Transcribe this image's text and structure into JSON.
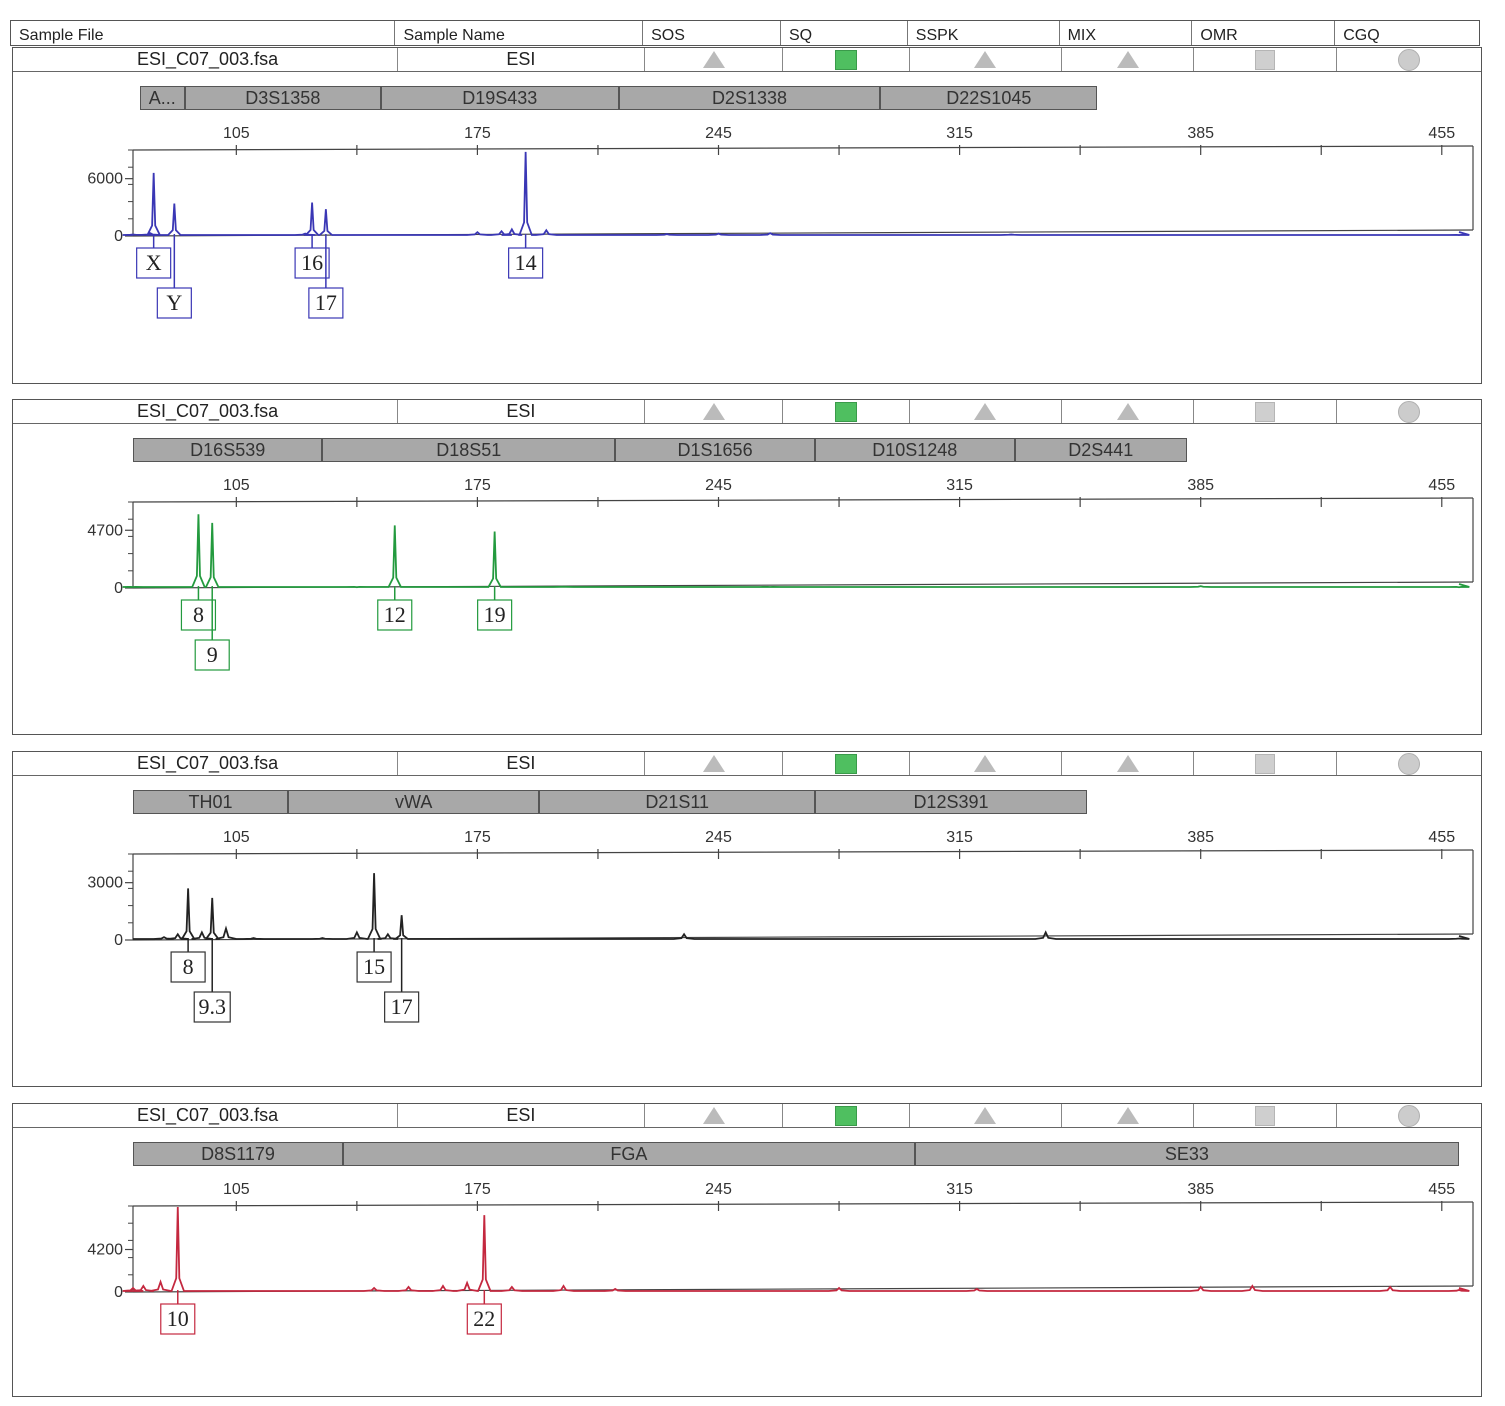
{
  "header": {
    "columns": [
      {
        "label": "Sample File",
        "width": 385
      },
      {
        "label": "Sample Name",
        "width": 248
      },
      {
        "label": "SOS",
        "width": 138
      },
      {
        "label": "SQ",
        "width": 127
      },
      {
        "label": "SSPK",
        "width": 152
      },
      {
        "label": "MIX",
        "width": 133
      },
      {
        "label": "OMR",
        "width": 143
      },
      {
        "label": "CGQ",
        "width": 144
      }
    ]
  },
  "chart_data": [
    {
      "type": "line",
      "sample_file": "ESI_C07_003.fsa",
      "sample_name": "ESI",
      "dye_color": "#3a37b5",
      "xlim": [
        75,
        460
      ],
      "x_ticks": [
        105,
        175,
        245,
        315,
        385,
        455
      ],
      "y_ticks": [
        0,
        6000
      ],
      "ymax": 9000,
      "loci": [
        {
          "name": "A...",
          "start": 77,
          "end": 90
        },
        {
          "name": "D3S1358",
          "start": 90,
          "end": 147
        },
        {
          "name": "D19S433",
          "start": 147,
          "end": 216
        },
        {
          "name": "D2S1338",
          "start": 216,
          "end": 292
        },
        {
          "name": "D22S1045",
          "start": 292,
          "end": 355
        }
      ],
      "peaks": [
        {
          "x": 81,
          "height": 6600,
          "call": "X",
          "row": 0
        },
        {
          "x": 87,
          "height": 3400,
          "call": "Y",
          "row": 1
        },
        {
          "x": 127,
          "height": 3500,
          "call": "16",
          "row": 0
        },
        {
          "x": 131,
          "height": 2800,
          "call": "17",
          "row": 1
        },
        {
          "x": 189,
          "height": 8800,
          "call": "14",
          "row": 0
        }
      ],
      "noise": [
        [
          75,
          150
        ],
        [
          80,
          300
        ],
        [
          125,
          250
        ],
        [
          175,
          400
        ],
        [
          182,
          500
        ],
        [
          185,
          700
        ],
        [
          195,
          600
        ],
        [
          230,
          200
        ],
        [
          245,
          250
        ],
        [
          260,
          300
        ],
        [
          330,
          150
        ],
        [
          460,
          100
        ]
      ]
    },
    {
      "type": "line",
      "sample_file": "ESI_C07_003.fsa",
      "sample_name": "ESI",
      "dye_color": "#239a3e",
      "xlim": [
        75,
        460
      ],
      "x_ticks": [
        105,
        175,
        245,
        315,
        385,
        455
      ],
      "y_ticks": [
        0,
        4700
      ],
      "ymax": 7000,
      "loci": [
        {
          "name": "D16S539",
          "start": 75,
          "end": 130
        },
        {
          "name": "D18S51",
          "start": 130,
          "end": 215
        },
        {
          "name": "D1S1656",
          "start": 215,
          "end": 273
        },
        {
          "name": "D10S1248",
          "start": 273,
          "end": 331
        },
        {
          "name": "D2S441",
          "start": 331,
          "end": 381
        }
      ],
      "peaks": [
        {
          "x": 94,
          "height": 6000,
          "call": "8",
          "row": 0
        },
        {
          "x": 98,
          "height": 5300,
          "call": "9",
          "row": 1
        },
        {
          "x": 151,
          "height": 5100,
          "call": "12",
          "row": 0
        },
        {
          "x": 180,
          "height": 4600,
          "call": "19",
          "row": 0
        }
      ],
      "noise": [
        [
          75,
          80
        ],
        [
          140,
          60
        ],
        [
          200,
          100
        ],
        [
          260,
          80
        ],
        [
          385,
          150
        ],
        [
          460,
          60
        ]
      ]
    },
    {
      "type": "line",
      "sample_file": "ESI_C07_003.fsa",
      "sample_name": "ESI",
      "dye_color": "#222222",
      "xlim": [
        75,
        460
      ],
      "x_ticks": [
        105,
        175,
        245,
        315,
        385,
        455
      ],
      "y_ticks": [
        0,
        3000
      ],
      "ymax": 4500,
      "loci": [
        {
          "name": "TH01",
          "start": 75,
          "end": 120
        },
        {
          "name": "vWA",
          "start": 120,
          "end": 193
        },
        {
          "name": "D21S11",
          "start": 193,
          "end": 273
        },
        {
          "name": "D12S391",
          "start": 273,
          "end": 352
        }
      ],
      "peaks": [
        {
          "x": 91,
          "height": 2700,
          "call": "8",
          "row": 0
        },
        {
          "x": 98,
          "height": 2200,
          "call": "9.3",
          "row": 1
        },
        {
          "x": 145,
          "height": 3500,
          "call": "15",
          "row": 0
        },
        {
          "x": 153,
          "height": 1300,
          "call": "17",
          "row": 1
        }
      ],
      "noise": [
        [
          84,
          150
        ],
        [
          88,
          300
        ],
        [
          95,
          400
        ],
        [
          102,
          600
        ],
        [
          110,
          100
        ],
        [
          130,
          100
        ],
        [
          140,
          400
        ],
        [
          149,
          300
        ],
        [
          235,
          300
        ],
        [
          340,
          400
        ],
        [
          460,
          80
        ]
      ]
    },
    {
      "type": "line",
      "sample_file": "ESI_C07_003.fsa",
      "sample_name": "ESI",
      "dye_color": "#c4283f",
      "xlim": [
        75,
        460
      ],
      "x_ticks": [
        105,
        175,
        245,
        315,
        385,
        455
      ],
      "y_ticks": [
        0,
        4200
      ],
      "ymax": 8500,
      "loci": [
        {
          "name": "D8S1179",
          "start": 75,
          "end": 136
        },
        {
          "name": "FGA",
          "start": 136,
          "end": 302
        },
        {
          "name": "SE33",
          "start": 302,
          "end": 460
        }
      ],
      "peaks": [
        {
          "x": 88,
          "height": 8400,
          "call": "10",
          "row": 0
        },
        {
          "x": 177,
          "height": 7600,
          "call": "22",
          "row": 0
        }
      ],
      "noise": [
        [
          75,
          400
        ],
        [
          78,
          600
        ],
        [
          83,
          1000
        ],
        [
          145,
          400
        ],
        [
          155,
          500
        ],
        [
          165,
          600
        ],
        [
          172,
          900
        ],
        [
          185,
          500
        ],
        [
          200,
          600
        ],
        [
          215,
          300
        ],
        [
          280,
          400
        ],
        [
          320,
          300
        ],
        [
          385,
          500
        ],
        [
          400,
          600
        ],
        [
          440,
          500
        ],
        [
          460,
          200
        ]
      ]
    }
  ]
}
